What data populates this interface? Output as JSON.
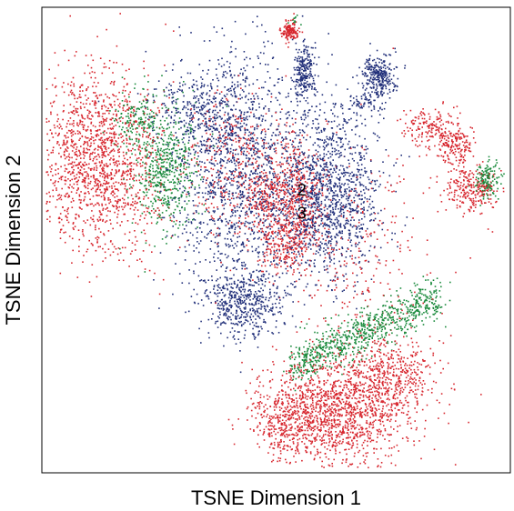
{
  "chart_data": {
    "type": "scatter",
    "title": "",
    "xlabel": "TSNE Dimension 1",
    "ylabel": "TSNE Dimension 2",
    "xlim": [
      0,
      100
    ],
    "ylim": [
      0,
      100
    ],
    "ticks": "none",
    "grid": false,
    "legend": "none",
    "point_annotations": [
      {
        "text": "2",
        "x": 55.5,
        "y": 60.5
      },
      {
        "text": "3",
        "x": 55.5,
        "y": 55.5
      }
    ],
    "series": [
      {
        "color": "#d7262e",
        "clusters": [
          {
            "cx": 12,
            "cy": 67,
            "sx": 6.5,
            "sy": 10,
            "n": 1500
          },
          {
            "cx": 63,
            "cy": 13,
            "sx": 7.5,
            "sy": 6,
            "n": 1250
          },
          {
            "cx": 74,
            "cy": 20,
            "sx": 5,
            "sy": 5,
            "n": 500
          },
          {
            "cx": 53,
            "cy": 12,
            "sx": 4,
            "sy": 4,
            "n": 350
          },
          {
            "cx": 55,
            "cy": 58,
            "sx": 2.5,
            "sy": 7,
            "n": 420
          },
          {
            "cx": 48,
            "cy": 59,
            "sx": 2.5,
            "sy": 4,
            "n": 220
          },
          {
            "cx": 51,
            "cy": 49,
            "sx": 2.5,
            "sy": 3,
            "n": 180
          },
          {
            "cx": 53,
            "cy": 95,
            "sx": 1,
            "sy": 1,
            "n": 150
          },
          {
            "cx": 83,
            "cy": 74,
            "sx": 3,
            "sy": 2,
            "n": 180
          },
          {
            "cx": 88,
            "cy": 70,
            "sx": 2,
            "sy": 2,
            "n": 150
          },
          {
            "cx": 92,
            "cy": 61,
            "sx": 3,
            "sy": 2.5,
            "n": 260
          },
          {
            "cx": 41,
            "cy": 67,
            "sx": 6,
            "sy": 8,
            "n": 360
          },
          {
            "cx": 67,
            "cy": 48,
            "sx": 9,
            "sy": 12,
            "n": 300
          }
        ]
      },
      {
        "color": "#1a8a3c",
        "clusters": [
          {
            "cx": 26,
            "cy": 65,
            "sx": 3.5,
            "sy": 6.5,
            "n": 550
          },
          {
            "cx": 20,
            "cy": 76,
            "sx": 2.5,
            "sy": 3,
            "n": 150
          },
          {
            "cx": 95,
            "cy": 63,
            "sx": 1.3,
            "sy": 2,
            "n": 140
          },
          {
            "cx": 54,
            "cy": 97,
            "sx": 0.6,
            "sy": 0.6,
            "n": 12
          }
        ],
        "line_clusters": [
          {
            "x0": 54,
            "y0": 23,
            "x1": 85,
            "y1": 38,
            "spread": 2.2,
            "n": 800
          }
        ]
      },
      {
        "color": "#22307a",
        "clusters": [
          {
            "cx": 42,
            "cy": 65,
            "sx": 7,
            "sy": 13,
            "n": 1400
          },
          {
            "cx": 61,
            "cy": 60,
            "sx": 5.5,
            "sy": 9,
            "n": 1300
          },
          {
            "cx": 43,
            "cy": 37,
            "sx": 4.5,
            "sy": 4,
            "n": 520
          },
          {
            "cx": 34,
            "cy": 77,
            "sx": 5,
            "sy": 4.5,
            "n": 300
          },
          {
            "cx": 56,
            "cy": 86,
            "sx": 1.2,
            "sy": 3,
            "n": 240
          },
          {
            "cx": 72,
            "cy": 85,
            "sx": 1.8,
            "sy": 2.2,
            "n": 300
          },
          {
            "cx": 69,
            "cy": 79,
            "sx": 2,
            "sy": 1.2,
            "n": 60
          }
        ]
      }
    ]
  }
}
